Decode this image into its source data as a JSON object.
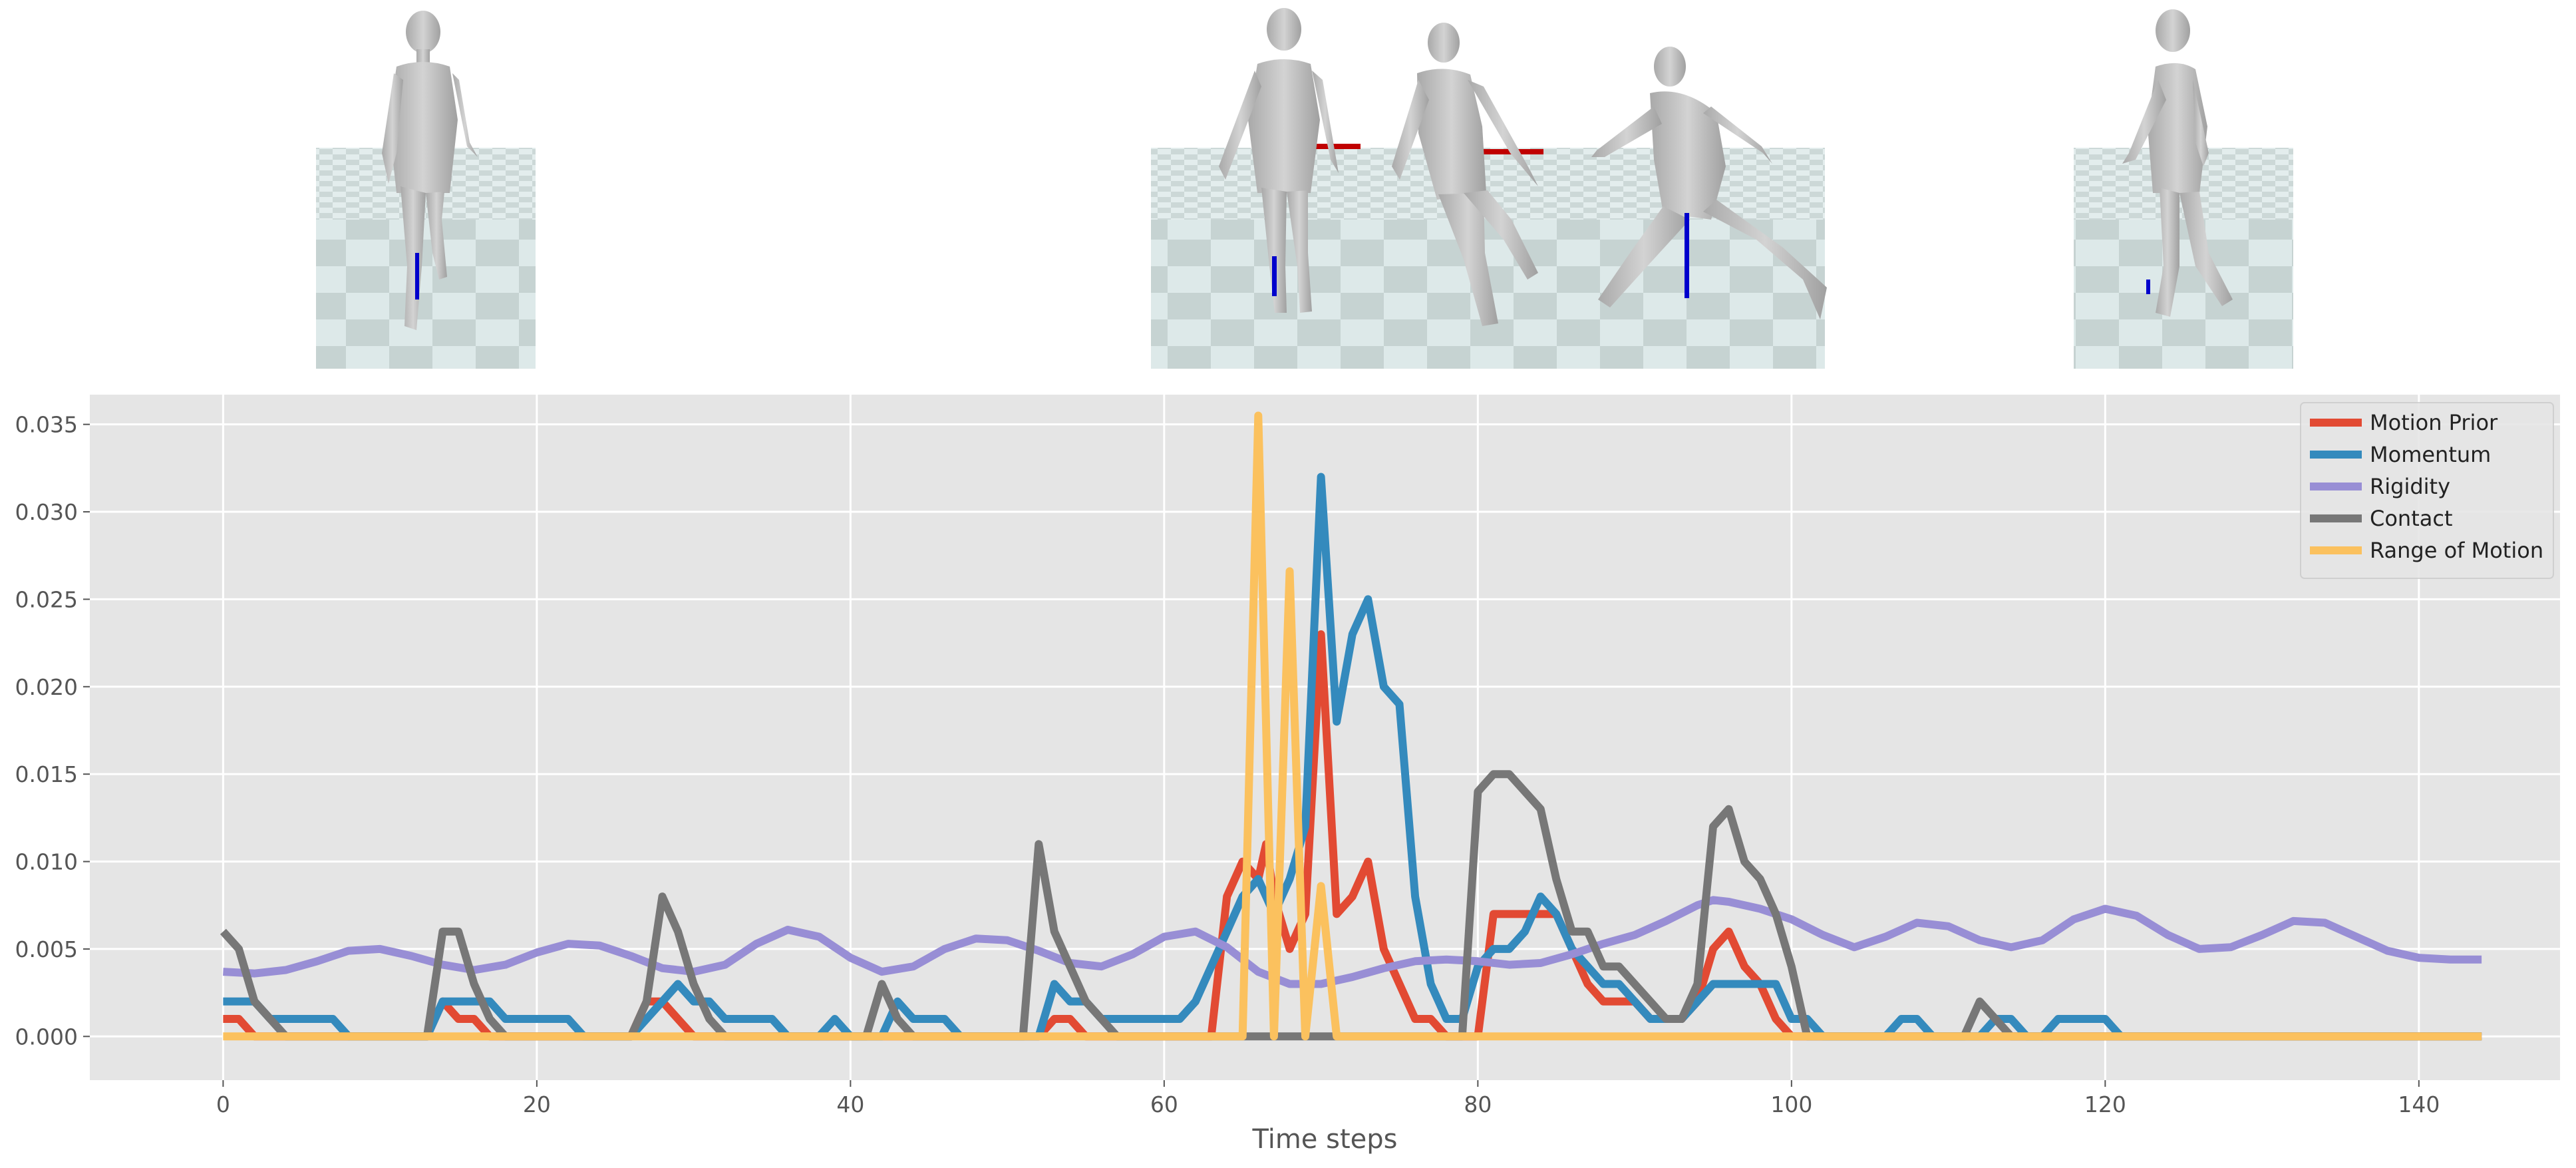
{
  "colors": {
    "background": "#ffffff",
    "axes_bg": "#e5e5e5",
    "grid": "#ffffff",
    "floor_light": "#dde9e9",
    "floor_dark": "#c2d0cf",
    "figure": "#bdbdbd",
    "marker_red": "#c00000",
    "marker_blue": "#0000cc"
  },
  "thumbnails": [
    {
      "frame": "rest-walk",
      "poses": [
        "walk-front"
      ]
    },
    {
      "frame": "stumble-sequence",
      "poses": [
        "walk-front",
        "stumble",
        "lunge"
      ]
    },
    {
      "frame": "recovery-walk",
      "poses": [
        "walk-side"
      ]
    }
  ],
  "chart_data": {
    "type": "line",
    "title": "",
    "xlabel": "Time steps",
    "ylabel": "",
    "xlim": [
      -8.5,
      149
    ],
    "ylim": [
      -0.0025,
      0.0367
    ],
    "xticks": [
      0,
      20,
      40,
      60,
      80,
      100,
      120,
      140
    ],
    "yticks": [
      0.0,
      0.005,
      0.01,
      0.015,
      0.02,
      0.025,
      0.03,
      0.035
    ],
    "ytick_labels": [
      "0.000",
      "0.005",
      "0.010",
      "0.015",
      "0.020",
      "0.025",
      "0.030",
      "0.035"
    ],
    "grid": true,
    "legend_position": "top-right",
    "series": [
      {
        "name": "Motion Prior",
        "color": "#e24a33",
        "points": [
          [
            0,
            0.001
          ],
          [
            1,
            0.001
          ],
          [
            2,
            0
          ],
          [
            13,
            0
          ],
          [
            14,
            0.002
          ],
          [
            15,
            0.001
          ],
          [
            16,
            0.001
          ],
          [
            17,
            0
          ],
          [
            26,
            0
          ],
          [
            27,
            0.002
          ],
          [
            28,
            0.002
          ],
          [
            29,
            0.001
          ],
          [
            30,
            0
          ],
          [
            52,
            0
          ],
          [
            53,
            0.001
          ],
          [
            54,
            0.001
          ],
          [
            55,
            0
          ],
          [
            63,
            0
          ],
          [
            64,
            0.008
          ],
          [
            65,
            0.01
          ],
          [
            66,
            0.009
          ],
          [
            66.5,
            0.011
          ],
          [
            67,
            0.008
          ],
          [
            68,
            0.005
          ],
          [
            69,
            0.007
          ],
          [
            70,
            0.023
          ],
          [
            71,
            0.007
          ],
          [
            72,
            0.008
          ],
          [
            73,
            0.01
          ],
          [
            74,
            0.005
          ],
          [
            75,
            0.003
          ],
          [
            76,
            0.001
          ],
          [
            77,
            0.001
          ],
          [
            78,
            0
          ],
          [
            80,
            0
          ],
          [
            81,
            0.007
          ],
          [
            85,
            0.007
          ],
          [
            86,
            0.005
          ],
          [
            87,
            0.003
          ],
          [
            88,
            0.002
          ],
          [
            90,
            0.002
          ],
          [
            91,
            0.001
          ],
          [
            93,
            0.001
          ],
          [
            94,
            0.002
          ],
          [
            95,
            0.005
          ],
          [
            96,
            0.006
          ],
          [
            97,
            0.004
          ],
          [
            98,
            0.003
          ],
          [
            99,
            0.001
          ],
          [
            100,
            0
          ],
          [
            144,
            0
          ]
        ]
      },
      {
        "name": "Momentum",
        "color": "#348abd",
        "points": [
          [
            0,
            0.002
          ],
          [
            2,
            0.002
          ],
          [
            3,
            0.001
          ],
          [
            7,
            0.001
          ],
          [
            8,
            0
          ],
          [
            13,
            0
          ],
          [
            14,
            0.002
          ],
          [
            17,
            0.002
          ],
          [
            18,
            0.001
          ],
          [
            22,
            0.001
          ],
          [
            23,
            0
          ],
          [
            26,
            0
          ],
          [
            27,
            0.001
          ],
          [
            28,
            0.002
          ],
          [
            29,
            0.003
          ],
          [
            30,
            0.002
          ],
          [
            31,
            0.002
          ],
          [
            32,
            0.001
          ],
          [
            35,
            0.001
          ],
          [
            36,
            0
          ],
          [
            38,
            0
          ],
          [
            39,
            0.001
          ],
          [
            40,
            0
          ],
          [
            42,
            0
          ],
          [
            43,
            0.002
          ],
          [
            44,
            0.001
          ],
          [
            46,
            0.001
          ],
          [
            47,
            0
          ],
          [
            52,
            0
          ],
          [
            53,
            0.003
          ],
          [
            54,
            0.002
          ],
          [
            55,
            0.002
          ],
          [
            56,
            0.001
          ],
          [
            61,
            0.001
          ],
          [
            62,
            0.002
          ],
          [
            63,
            0.004
          ],
          [
            64,
            0.006
          ],
          [
            65,
            0.008
          ],
          [
            66,
            0.009
          ],
          [
            67,
            0.007
          ],
          [
            68,
            0.009
          ],
          [
            69,
            0.012
          ],
          [
            70,
            0.032
          ],
          [
            71,
            0.018
          ],
          [
            72,
            0.023
          ],
          [
            73,
            0.025
          ],
          [
            74,
            0.02
          ],
          [
            75,
            0.019
          ],
          [
            76,
            0.008
          ],
          [
            77,
            0.003
          ],
          [
            78,
            0.001
          ],
          [
            79,
            0.001
          ],
          [
            80,
            0.004
          ],
          [
            81,
            0.005
          ],
          [
            82,
            0.005
          ],
          [
            83,
            0.006
          ],
          [
            84,
            0.008
          ],
          [
            85,
            0.007
          ],
          [
            86,
            0.005
          ],
          [
            87,
            0.004
          ],
          [
            88,
            0.003
          ],
          [
            89,
            0.003
          ],
          [
            90,
            0.002
          ],
          [
            91,
            0.001
          ],
          [
            93,
            0.001
          ],
          [
            94,
            0.002
          ],
          [
            95,
            0.003
          ],
          [
            99,
            0.003
          ],
          [
            100,
            0.001
          ],
          [
            101,
            0.001
          ],
          [
            102,
            0
          ],
          [
            106,
            0
          ],
          [
            107,
            0.001
          ],
          [
            108,
            0.001
          ],
          [
            109,
            0
          ],
          [
            112,
            0
          ],
          [
            113,
            0.001
          ],
          [
            114,
            0.001
          ],
          [
            115,
            0
          ],
          [
            116,
            0
          ],
          [
            117,
            0.001
          ],
          [
            120,
            0.001
          ],
          [
            121,
            0
          ],
          [
            144,
            0
          ]
        ]
      },
      {
        "name": "Rigidity",
        "color": "#988ed5",
        "points": [
          [
            0,
            0.0037
          ],
          [
            2,
            0.0036
          ],
          [
            4,
            0.0038
          ],
          [
            6,
            0.0043
          ],
          [
            8,
            0.0049
          ],
          [
            10,
            0.005
          ],
          [
            12,
            0.0046
          ],
          [
            14,
            0.0041
          ],
          [
            16,
            0.0038
          ],
          [
            18,
            0.0041
          ],
          [
            20,
            0.0048
          ],
          [
            22,
            0.0053
          ],
          [
            24,
            0.0052
          ],
          [
            26,
            0.0046
          ],
          [
            28,
            0.0039
          ],
          [
            30,
            0.0037
          ],
          [
            32,
            0.0041
          ],
          [
            34,
            0.0053
          ],
          [
            36,
            0.0061
          ],
          [
            38,
            0.0057
          ],
          [
            40,
            0.0045
          ],
          [
            42,
            0.0037
          ],
          [
            44,
            0.004
          ],
          [
            46,
            0.005
          ],
          [
            48,
            0.0056
          ],
          [
            50,
            0.0055
          ],
          [
            52,
            0.0049
          ],
          [
            54,
            0.0042
          ],
          [
            56,
            0.004
          ],
          [
            58,
            0.0047
          ],
          [
            60,
            0.0057
          ],
          [
            62,
            0.006
          ],
          [
            64,
            0.0051
          ],
          [
            66,
            0.0037
          ],
          [
            68,
            0.003
          ],
          [
            70,
            0.003
          ],
          [
            72,
            0.0034
          ],
          [
            74,
            0.0039
          ],
          [
            76,
            0.0043
          ],
          [
            78,
            0.0044
          ],
          [
            80,
            0.0043
          ],
          [
            82,
            0.0041
          ],
          [
            84,
            0.0042
          ],
          [
            86,
            0.0047
          ],
          [
            88,
            0.0053
          ],
          [
            90,
            0.0058
          ],
          [
            92,
            0.0066
          ],
          [
            94,
            0.0075
          ],
          [
            95,
            0.0078
          ],
          [
            96,
            0.0077
          ],
          [
            98,
            0.0073
          ],
          [
            100,
            0.0067
          ],
          [
            102,
            0.0058
          ],
          [
            104,
            0.0051
          ],
          [
            106,
            0.0057
          ],
          [
            108,
            0.0065
          ],
          [
            110,
            0.0063
          ],
          [
            112,
            0.0055
          ],
          [
            114,
            0.0051
          ],
          [
            116,
            0.0055
          ],
          [
            118,
            0.0067
          ],
          [
            120,
            0.0073
          ],
          [
            122,
            0.0069
          ],
          [
            124,
            0.0058
          ],
          [
            126,
            0.005
          ],
          [
            128,
            0.0051
          ],
          [
            130,
            0.0058
          ],
          [
            132,
            0.0066
          ],
          [
            134,
            0.0065
          ],
          [
            136,
            0.0057
          ],
          [
            138,
            0.0049
          ],
          [
            140,
            0.0045
          ],
          [
            142,
            0.0044
          ],
          [
            144,
            0.0044
          ]
        ]
      },
      {
        "name": "Contact",
        "color": "#777777",
        "points": [
          [
            0,
            0.006
          ],
          [
            1,
            0.005
          ],
          [
            2,
            0.002
          ],
          [
            3,
            0.001
          ],
          [
            4,
            0
          ],
          [
            13,
            0
          ],
          [
            14,
            0.006
          ],
          [
            15,
            0.006
          ],
          [
            16,
            0.003
          ],
          [
            17,
            0.001
          ],
          [
            18,
            0
          ],
          [
            26,
            0
          ],
          [
            27,
            0.002
          ],
          [
            28,
            0.008
          ],
          [
            29,
            0.006
          ],
          [
            30,
            0.003
          ],
          [
            31,
            0.001
          ],
          [
            32,
            0
          ],
          [
            41,
            0
          ],
          [
            42,
            0.003
          ],
          [
            43,
            0.001
          ],
          [
            44,
            0
          ],
          [
            51,
            0
          ],
          [
            52,
            0.011
          ],
          [
            53,
            0.006
          ],
          [
            54,
            0.004
          ],
          [
            55,
            0.002
          ],
          [
            56,
            0.001
          ],
          [
            57,
            0
          ],
          [
            79,
            0
          ],
          [
            80,
            0.014
          ],
          [
            81,
            0.015
          ],
          [
            82,
            0.015
          ],
          [
            83,
            0.014
          ],
          [
            84,
            0.013
          ],
          [
            85,
            0.009
          ],
          [
            86,
            0.006
          ],
          [
            87,
            0.006
          ],
          [
            88,
            0.004
          ],
          [
            89,
            0.004
          ],
          [
            90,
            0.003
          ],
          [
            91,
            0.002
          ],
          [
            92,
            0.001
          ],
          [
            93,
            0.001
          ],
          [
            94,
            0.003
          ],
          [
            95,
            0.012
          ],
          [
            96,
            0.013
          ],
          [
            97,
            0.01
          ],
          [
            98,
            0.009
          ],
          [
            99,
            0.007
          ],
          [
            100,
            0.004
          ],
          [
            101,
            0
          ],
          [
            111,
            0
          ],
          [
            112,
            0.002
          ],
          [
            113,
            0.001
          ],
          [
            114,
            0
          ],
          [
            144,
            0
          ]
        ]
      },
      {
        "name": "Range of Motion",
        "color": "#fbc15e",
        "points": [
          [
            0,
            0
          ],
          [
            65,
            0
          ],
          [
            66,
            0.0355
          ],
          [
            67,
            0
          ],
          [
            68,
            0.0266
          ],
          [
            69,
            0
          ],
          [
            70,
            0.0086
          ],
          [
            71,
            0
          ],
          [
            144,
            0
          ]
        ]
      }
    ]
  }
}
